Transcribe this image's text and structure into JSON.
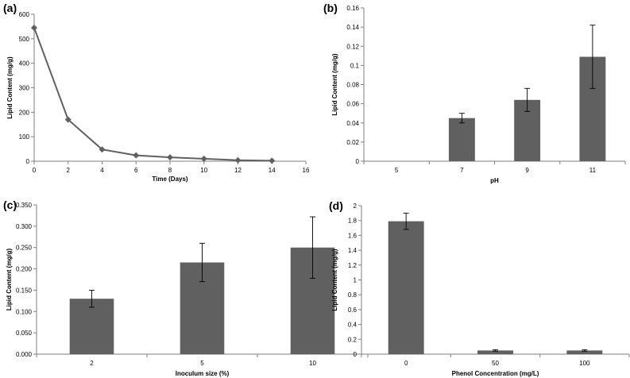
{
  "chart_data": [
    {
      "id": "a",
      "panel_label": "(a)",
      "type": "line",
      "x": [
        0,
        2,
        4,
        6,
        8,
        10,
        12,
        14
      ],
      "y": [
        545,
        170,
        48,
        24,
        16,
        10,
        4,
        2
      ],
      "xlim": [
        0,
        16
      ],
      "ylim": [
        0,
        600
      ],
      "xticks": [
        "0",
        "2",
        "4",
        "6",
        "8",
        "10",
        "12",
        "14",
        "16"
      ],
      "yticks": [
        "0",
        "100",
        "200",
        "300",
        "400",
        "500",
        "600"
      ],
      "xlabel": "Time (Days)",
      "ylabel": "Lipid Content (mg/g)",
      "marker": "diamond"
    },
    {
      "id": "b",
      "panel_label": "(b)",
      "type": "bar",
      "categories": [
        "5",
        "7",
        "9",
        "11"
      ],
      "values": [
        0,
        0.045,
        0.064,
        0.109
      ],
      "errors": [
        0,
        0.005,
        0.012,
        0.033
      ],
      "ylim": [
        0,
        0.16
      ],
      "yticks": [
        "0",
        "0.02",
        "0.04",
        "0.06",
        "0.08",
        "0.1",
        "0.12",
        "0.14",
        "0.16"
      ],
      "xlabel": "pH",
      "ylabel": "Lipid Content (mg/g)"
    },
    {
      "id": "c",
      "panel_label": "(c)",
      "type": "bar",
      "categories": [
        "2",
        "5",
        "10"
      ],
      "values": [
        0.13,
        0.215,
        0.25
      ],
      "errors": [
        0.02,
        0.045,
        0.072
      ],
      "ylim": [
        0,
        0.35
      ],
      "yticks": [
        "0.000",
        "0.050",
        "0.100",
        "0.150",
        "0.200",
        "0.250",
        "0.300",
        "0.350"
      ],
      "xlabel": "Inoculum size (%)",
      "ylabel": "Lipid Content (mg/g)"
    },
    {
      "id": "d",
      "panel_label": "(d)",
      "type": "bar",
      "categories": [
        "0",
        "50",
        "100"
      ],
      "values": [
        1.79,
        0.05,
        0.05
      ],
      "errors": [
        0.11,
        0.01,
        0.01
      ],
      "ylim": [
        0,
        2
      ],
      "yticks": [
        "0",
        "0.2",
        "0.4",
        "0.6",
        "0.8",
        "1",
        "1.2",
        "1.4",
        "1.6",
        "1.8",
        "2"
      ],
      "xlabel": "Phenol Concentration  (mg/L)",
      "ylabel": "Lipid Content (mg/g)"
    }
  ]
}
